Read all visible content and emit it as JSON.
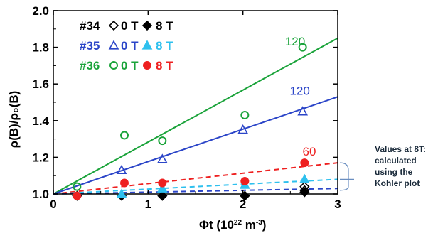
{
  "chart_data": {
    "type": "scatter",
    "xlabel_main": "Φt (10",
    "xlabel_exp": "22",
    "xlabel_unit": " m",
    "xlabel_unit_exp": "-3",
    "xlabel_close": ")",
    "ylabel": "ρ(B)/ρ₀(B)",
    "xlim": [
      0,
      3
    ],
    "ylim": [
      1.0,
      2.0
    ],
    "xticks": [
      0,
      1,
      2,
      3
    ],
    "yticks": [
      1.0,
      1.2,
      1.4,
      1.6,
      1.8,
      2.0
    ],
    "xtick_labels": [
      "0",
      "1",
      "2",
      "3"
    ],
    "ytick_labels": [
      "1.0",
      "1.2",
      "1.4",
      "1.6",
      "1.8",
      "2.0"
    ],
    "grid": false,
    "legend": [
      {
        "prefix": "#34",
        "open_label": "0 T",
        "filled_label": "8 T",
        "shape": "diamond",
        "color": "#000000",
        "text_color": "#000000"
      },
      {
        "prefix": "#35",
        "open_label": "0 T",
        "filled_label": "8 T",
        "shape": "triangle",
        "color": "#2b45c8",
        "text_color": "#2b45c8",
        "filled_color": "#2ec0ee"
      },
      {
        "prefix": "#36",
        "open_label": "0 T",
        "filled_label": "8 T",
        "shape": "circle",
        "color": "#1aa33a",
        "text_color": "#1aa33a",
        "filled_color": "#ee2020"
      }
    ],
    "series": [
      {
        "name": "#34 0 T",
        "shape": "diamond",
        "filled": false,
        "color": "#000000",
        "points": [
          [
            2.65,
            1.02
          ],
          [
            2.65,
            1.04
          ]
        ]
      },
      {
        "name": "#34 8 T",
        "shape": "diamond",
        "filled": true,
        "color": "#000000",
        "points": [
          [
            0.25,
            0.99
          ],
          [
            0.72,
            0.99
          ],
          [
            1.15,
            0.99
          ],
          [
            2.02,
            0.99
          ],
          [
            2.65,
            1.01
          ]
        ]
      },
      {
        "name": "#35 0 T",
        "shape": "triangle",
        "filled": false,
        "color": "#2b45c8",
        "points": [
          [
            0.72,
            1.13
          ],
          [
            1.15,
            1.19
          ],
          [
            2.0,
            1.35
          ],
          [
            2.63,
            1.45
          ]
        ]
      },
      {
        "name": "#35 8 T",
        "shape": "triangle",
        "filled": true,
        "color": "#2ec0ee",
        "points": [
          [
            0.72,
            1.0
          ],
          [
            1.15,
            1.03
          ],
          [
            2.02,
            1.05
          ],
          [
            2.65,
            1.08
          ]
        ]
      },
      {
        "name": "#36 0 T",
        "shape": "circle",
        "filled": false,
        "color": "#1aa33a",
        "points": [
          [
            0.25,
            1.04
          ],
          [
            0.75,
            1.32
          ],
          [
            1.15,
            1.29
          ],
          [
            2.02,
            1.43
          ],
          [
            2.63,
            1.8
          ]
        ]
      },
      {
        "name": "#36 8 T",
        "shape": "circle",
        "filled": true,
        "color": "#ee2020",
        "points": [
          [
            0.25,
            0.99
          ],
          [
            0.75,
            1.06
          ],
          [
            1.15,
            1.06
          ],
          [
            2.02,
            1.07
          ],
          [
            2.65,
            1.17
          ]
        ]
      }
    ],
    "fit_lines": [
      {
        "color": "#1aa33a",
        "dashed": false,
        "from": [
          0,
          1.0
        ],
        "to": [
          3,
          1.85
        ],
        "label": "120",
        "label_at": [
          2.55,
          1.81
        ]
      },
      {
        "color": "#2b45c8",
        "dashed": false,
        "from": [
          0,
          1.0
        ],
        "to": [
          3,
          1.53
        ],
        "label": "120",
        "label_at": [
          2.6,
          1.54
        ]
      },
      {
        "color": "#ee2020",
        "dashed": true,
        "from": [
          0,
          1.0
        ],
        "to": [
          3,
          1.17
        ],
        "label": "60",
        "label_at": [
          2.7,
          1.21
        ]
      },
      {
        "color": "#2ec0ee",
        "dashed": true,
        "from": [
          0,
          1.0
        ],
        "to": [
          3,
          1.08
        ],
        "label": "",
        "label_at": null
      },
      {
        "color": "#2b45c8",
        "dashed": true,
        "from": [
          0,
          1.0
        ],
        "to": [
          3,
          1.03
        ],
        "label": "",
        "label_at": null
      }
    ],
    "annotation": {
      "lines": [
        "Values at 8T:",
        "calculated",
        "using the",
        "Kohler plot"
      ],
      "bracket_color": "#6a8ec0"
    }
  }
}
